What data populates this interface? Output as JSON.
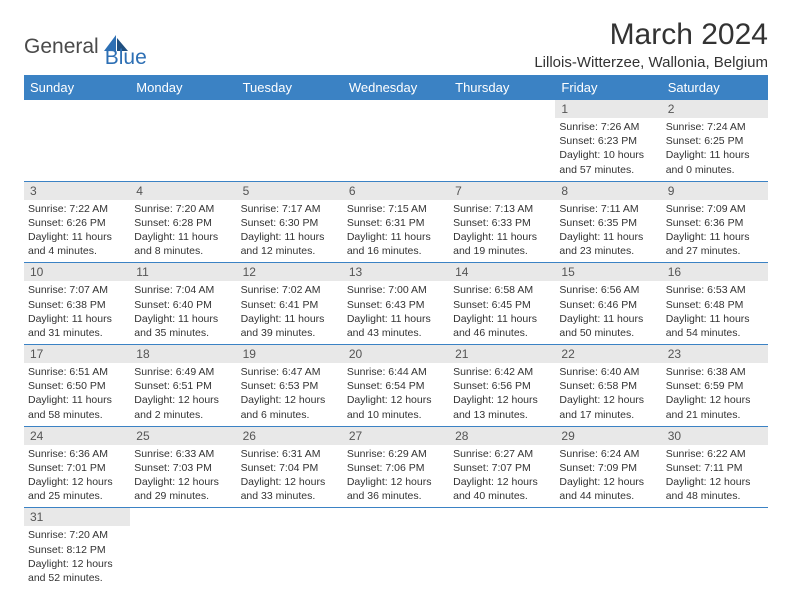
{
  "logo": {
    "general": "General",
    "blue": "Blue"
  },
  "title": "March 2024",
  "location": "Lillois-Witterzee, Wallonia, Belgium",
  "colors": {
    "header_bg": "#3b82c4",
    "header_text": "#ffffff",
    "daynum_bg": "#e8e8e8",
    "border": "#3b82c4",
    "logo_blue": "#2d6fb4",
    "logo_gray": "#4a4a4a"
  },
  "weekdays": [
    "Sunday",
    "Monday",
    "Tuesday",
    "Wednesday",
    "Thursday",
    "Friday",
    "Saturday"
  ],
  "grid": [
    [
      null,
      null,
      null,
      null,
      null,
      {
        "n": "1",
        "sr": "Sunrise: 7:26 AM",
        "ss": "Sunset: 6:23 PM",
        "dl": "Daylight: 10 hours and 57 minutes."
      },
      {
        "n": "2",
        "sr": "Sunrise: 7:24 AM",
        "ss": "Sunset: 6:25 PM",
        "dl": "Daylight: 11 hours and 0 minutes."
      }
    ],
    [
      {
        "n": "3",
        "sr": "Sunrise: 7:22 AM",
        "ss": "Sunset: 6:26 PM",
        "dl": "Daylight: 11 hours and 4 minutes."
      },
      {
        "n": "4",
        "sr": "Sunrise: 7:20 AM",
        "ss": "Sunset: 6:28 PM",
        "dl": "Daylight: 11 hours and 8 minutes."
      },
      {
        "n": "5",
        "sr": "Sunrise: 7:17 AM",
        "ss": "Sunset: 6:30 PM",
        "dl": "Daylight: 11 hours and 12 minutes."
      },
      {
        "n": "6",
        "sr": "Sunrise: 7:15 AM",
        "ss": "Sunset: 6:31 PM",
        "dl": "Daylight: 11 hours and 16 minutes."
      },
      {
        "n": "7",
        "sr": "Sunrise: 7:13 AM",
        "ss": "Sunset: 6:33 PM",
        "dl": "Daylight: 11 hours and 19 minutes."
      },
      {
        "n": "8",
        "sr": "Sunrise: 7:11 AM",
        "ss": "Sunset: 6:35 PM",
        "dl": "Daylight: 11 hours and 23 minutes."
      },
      {
        "n": "9",
        "sr": "Sunrise: 7:09 AM",
        "ss": "Sunset: 6:36 PM",
        "dl": "Daylight: 11 hours and 27 minutes."
      }
    ],
    [
      {
        "n": "10",
        "sr": "Sunrise: 7:07 AM",
        "ss": "Sunset: 6:38 PM",
        "dl": "Daylight: 11 hours and 31 minutes."
      },
      {
        "n": "11",
        "sr": "Sunrise: 7:04 AM",
        "ss": "Sunset: 6:40 PM",
        "dl": "Daylight: 11 hours and 35 minutes."
      },
      {
        "n": "12",
        "sr": "Sunrise: 7:02 AM",
        "ss": "Sunset: 6:41 PM",
        "dl": "Daylight: 11 hours and 39 minutes."
      },
      {
        "n": "13",
        "sr": "Sunrise: 7:00 AM",
        "ss": "Sunset: 6:43 PM",
        "dl": "Daylight: 11 hours and 43 minutes."
      },
      {
        "n": "14",
        "sr": "Sunrise: 6:58 AM",
        "ss": "Sunset: 6:45 PM",
        "dl": "Daylight: 11 hours and 46 minutes."
      },
      {
        "n": "15",
        "sr": "Sunrise: 6:56 AM",
        "ss": "Sunset: 6:46 PM",
        "dl": "Daylight: 11 hours and 50 minutes."
      },
      {
        "n": "16",
        "sr": "Sunrise: 6:53 AM",
        "ss": "Sunset: 6:48 PM",
        "dl": "Daylight: 11 hours and 54 minutes."
      }
    ],
    [
      {
        "n": "17",
        "sr": "Sunrise: 6:51 AM",
        "ss": "Sunset: 6:50 PM",
        "dl": "Daylight: 11 hours and 58 minutes."
      },
      {
        "n": "18",
        "sr": "Sunrise: 6:49 AM",
        "ss": "Sunset: 6:51 PM",
        "dl": "Daylight: 12 hours and 2 minutes."
      },
      {
        "n": "19",
        "sr": "Sunrise: 6:47 AM",
        "ss": "Sunset: 6:53 PM",
        "dl": "Daylight: 12 hours and 6 minutes."
      },
      {
        "n": "20",
        "sr": "Sunrise: 6:44 AM",
        "ss": "Sunset: 6:54 PM",
        "dl": "Daylight: 12 hours and 10 minutes."
      },
      {
        "n": "21",
        "sr": "Sunrise: 6:42 AM",
        "ss": "Sunset: 6:56 PM",
        "dl": "Daylight: 12 hours and 13 minutes."
      },
      {
        "n": "22",
        "sr": "Sunrise: 6:40 AM",
        "ss": "Sunset: 6:58 PM",
        "dl": "Daylight: 12 hours and 17 minutes."
      },
      {
        "n": "23",
        "sr": "Sunrise: 6:38 AM",
        "ss": "Sunset: 6:59 PM",
        "dl": "Daylight: 12 hours and 21 minutes."
      }
    ],
    [
      {
        "n": "24",
        "sr": "Sunrise: 6:36 AM",
        "ss": "Sunset: 7:01 PM",
        "dl": "Daylight: 12 hours and 25 minutes."
      },
      {
        "n": "25",
        "sr": "Sunrise: 6:33 AM",
        "ss": "Sunset: 7:03 PM",
        "dl": "Daylight: 12 hours and 29 minutes."
      },
      {
        "n": "26",
        "sr": "Sunrise: 6:31 AM",
        "ss": "Sunset: 7:04 PM",
        "dl": "Daylight: 12 hours and 33 minutes."
      },
      {
        "n": "27",
        "sr": "Sunrise: 6:29 AM",
        "ss": "Sunset: 7:06 PM",
        "dl": "Daylight: 12 hours and 36 minutes."
      },
      {
        "n": "28",
        "sr": "Sunrise: 6:27 AM",
        "ss": "Sunset: 7:07 PM",
        "dl": "Daylight: 12 hours and 40 minutes."
      },
      {
        "n": "29",
        "sr": "Sunrise: 6:24 AM",
        "ss": "Sunset: 7:09 PM",
        "dl": "Daylight: 12 hours and 44 minutes."
      },
      {
        "n": "30",
        "sr": "Sunrise: 6:22 AM",
        "ss": "Sunset: 7:11 PM",
        "dl": "Daylight: 12 hours and 48 minutes."
      }
    ],
    [
      {
        "n": "31",
        "sr": "Sunrise: 7:20 AM",
        "ss": "Sunset: 8:12 PM",
        "dl": "Daylight: 12 hours and 52 minutes."
      },
      null,
      null,
      null,
      null,
      null,
      null
    ]
  ]
}
